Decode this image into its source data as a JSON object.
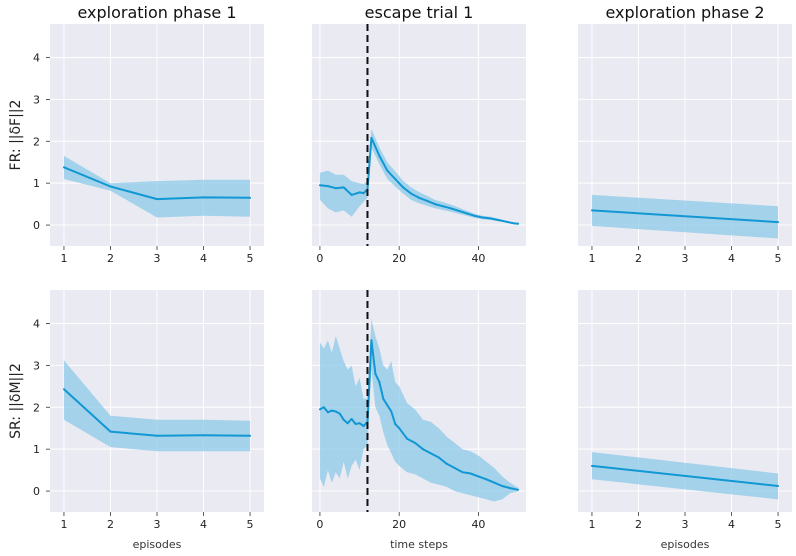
{
  "figure": {
    "row_labels": [
      "FR: ||δF||2",
      "SR: ||δM||2"
    ],
    "col_titles": [
      "exploration phase 1",
      "escape trial 1",
      "exploration phase 2"
    ],
    "x_labels": [
      "episodes",
      "time steps",
      "episodes"
    ]
  },
  "colors": {
    "background": "#eaeaf2",
    "grid": "#ffffff",
    "line": "#1197d3",
    "band": "#8cc9e8",
    "vline": "#111111"
  },
  "chart_data": [
    {
      "type": "line",
      "title": "exploration phase 1",
      "ylabel": "FR: ||δF||2",
      "xlabel": "",
      "x": [
        1,
        2,
        3,
        4,
        5
      ],
      "series": [
        {
          "values": [
            1.38,
            0.92,
            0.62,
            0.66,
            0.65
          ],
          "lower": [
            1.1,
            0.82,
            0.18,
            0.22,
            0.2
          ],
          "upper": [
            1.65,
            1.0,
            1.05,
            1.08,
            1.08
          ]
        }
      ],
      "xlim": [
        0.7,
        5.3
      ],
      "ylim": [
        -0.5,
        4.8
      ],
      "xticks": [
        1,
        2,
        3,
        4,
        5
      ],
      "yticks": [
        0,
        1,
        2,
        3,
        4
      ]
    },
    {
      "type": "line",
      "title": "escape trial 1",
      "xlabel": "",
      "x": [
        0,
        2,
        4,
        6,
        8,
        10,
        11,
        12,
        13,
        15,
        17,
        19,
        21,
        23,
        25,
        27,
        29,
        31,
        33,
        35,
        37,
        39,
        41,
        43,
        45,
        47,
        49,
        50
      ],
      "series": [
        {
          "values": [
            0.95,
            0.93,
            0.88,
            0.9,
            0.72,
            0.78,
            0.76,
            0.85,
            2.08,
            1.65,
            1.3,
            1.1,
            0.9,
            0.75,
            0.65,
            0.58,
            0.5,
            0.45,
            0.4,
            0.34,
            0.28,
            0.22,
            0.18,
            0.16,
            0.12,
            0.08,
            0.04,
            0.03
          ],
          "lower": [
            0.6,
            0.4,
            0.3,
            0.35,
            0.2,
            0.45,
            0.55,
            0.65,
            1.85,
            1.45,
            1.1,
            0.92,
            0.75,
            0.6,
            0.52,
            0.46,
            0.4,
            0.36,
            0.32,
            0.27,
            0.22,
            0.17,
            0.14,
            0.12,
            0.09,
            0.06,
            0.03,
            0.02
          ],
          "upper": [
            1.25,
            1.3,
            1.2,
            1.2,
            1.05,
            1.0,
            0.98,
            1.05,
            2.3,
            1.85,
            1.5,
            1.28,
            1.06,
            0.9,
            0.79,
            0.7,
            0.6,
            0.55,
            0.49,
            0.42,
            0.34,
            0.27,
            0.22,
            0.2,
            0.15,
            0.1,
            0.05,
            0.04
          ]
        }
      ],
      "vline": 12,
      "xlim": [
        -2,
        52
      ],
      "ylim": [
        -0.5,
        4.8
      ],
      "xticks": [
        0,
        20,
        40
      ],
      "yticks": [
        0,
        1,
        2,
        3,
        4
      ]
    },
    {
      "type": "line",
      "title": "exploration phase 2",
      "xlabel": "",
      "x": [
        1,
        5
      ],
      "series": [
        {
          "values": [
            0.35,
            0.07
          ],
          "lower": [
            -0.02,
            -0.32
          ],
          "upper": [
            0.72,
            0.45
          ]
        }
      ],
      "xlim": [
        0.7,
        5.3
      ],
      "ylim": [
        -0.5,
        4.8
      ],
      "xticks": [
        1,
        2,
        3,
        4,
        5
      ],
      "yticks": [
        0,
        1,
        2,
        3,
        4
      ]
    },
    {
      "type": "line",
      "ylabel": "SR: ||δM||2",
      "xlabel": "episodes",
      "x": [
        1,
        2,
        3,
        4,
        5
      ],
      "series": [
        {
          "values": [
            2.43,
            1.42,
            1.32,
            1.33,
            1.32
          ],
          "lower": [
            1.7,
            1.05,
            0.95,
            0.95,
            0.95
          ],
          "upper": [
            3.12,
            1.8,
            1.7,
            1.7,
            1.68
          ]
        }
      ],
      "xlim": [
        0.7,
        5.3
      ],
      "ylim": [
        -0.5,
        4.8
      ],
      "xticks": [
        1,
        2,
        3,
        4,
        5
      ],
      "yticks": [
        0,
        1,
        2,
        3,
        4
      ]
    },
    {
      "type": "line",
      "xlabel": "time steps",
      "x": [
        0,
        1,
        2,
        3,
        4,
        5,
        6,
        7,
        8,
        9,
        10,
        11,
        12,
        13,
        14,
        15,
        16,
        17,
        18,
        19,
        20,
        22,
        24,
        26,
        28,
        30,
        32,
        34,
        36,
        38,
        40,
        42,
        44,
        46,
        48,
        50
      ],
      "series": [
        {
          "values": [
            1.95,
            2.0,
            1.88,
            1.92,
            1.9,
            1.85,
            1.7,
            1.62,
            1.72,
            1.6,
            1.62,
            1.55,
            1.65,
            3.6,
            2.8,
            2.6,
            2.2,
            2.05,
            1.9,
            1.6,
            1.5,
            1.25,
            1.15,
            1.0,
            0.9,
            0.8,
            0.65,
            0.55,
            0.45,
            0.42,
            0.35,
            0.28,
            0.2,
            0.12,
            0.07,
            0.03
          ],
          "lower": [
            0.3,
            0.1,
            0.5,
            0.2,
            0.45,
            0.3,
            0.7,
            0.3,
            0.6,
            0.75,
            0.5,
            1.0,
            1.1,
            2.9,
            2.0,
            1.8,
            1.4,
            1.1,
            0.9,
            0.7,
            0.6,
            0.45,
            0.4,
            0.3,
            0.2,
            0.15,
            0.1,
            0.0,
            -0.05,
            -0.1,
            -0.15,
            -0.2,
            -0.25,
            -0.2,
            -0.05,
            0.0
          ],
          "upper": [
            3.55,
            3.4,
            3.6,
            3.3,
            3.7,
            3.4,
            3.1,
            2.9,
            3.0,
            2.5,
            2.7,
            2.2,
            2.2,
            4.1,
            3.7,
            3.4,
            3.0,
            2.9,
            3.1,
            2.6,
            2.5,
            2.1,
            1.95,
            1.7,
            1.65,
            1.5,
            1.3,
            1.15,
            1.0,
            0.95,
            0.85,
            0.7,
            0.55,
            0.35,
            0.2,
            0.08
          ]
        }
      ],
      "vline": 12,
      "xlim": [
        -2,
        52
      ],
      "ylim": [
        -0.5,
        4.8
      ],
      "xticks": [
        0,
        20,
        40
      ],
      "yticks": [
        0,
        1,
        2,
        3,
        4
      ]
    },
    {
      "type": "line",
      "xlabel": "episodes",
      "x": [
        1,
        5
      ],
      "series": [
        {
          "values": [
            0.6,
            0.12
          ],
          "lower": [
            0.28,
            -0.2
          ],
          "upper": [
            0.93,
            0.42
          ]
        }
      ],
      "xlim": [
        0.7,
        5.3
      ],
      "ylim": [
        -0.5,
        4.8
      ],
      "xticks": [
        1,
        2,
        3,
        4,
        5
      ],
      "yticks": [
        0,
        1,
        2,
        3,
        4
      ]
    }
  ]
}
